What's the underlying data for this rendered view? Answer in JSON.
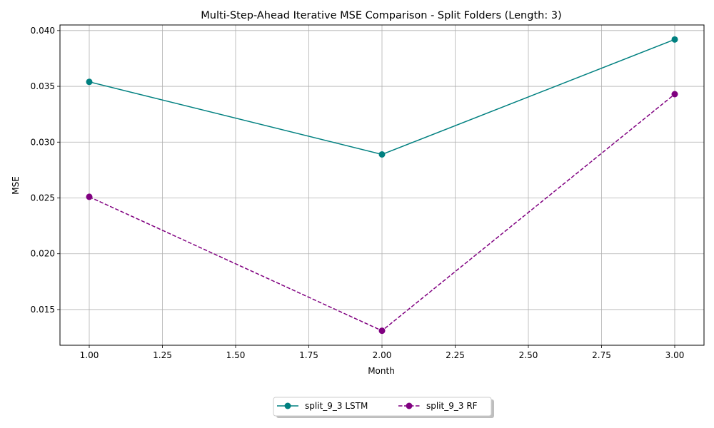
{
  "chart_data": {
    "type": "line",
    "title": "Multi-Step-Ahead Iterative MSE Comparison - Split Folders (Length: 3)",
    "xlabel": "Month",
    "ylabel": "MSE",
    "xlim": [
      0.9,
      3.1
    ],
    "ylim": [
      0.0118,
      0.0405
    ],
    "xticks": [
      1.0,
      1.25,
      1.5,
      1.75,
      2.0,
      2.25,
      2.5,
      2.75,
      3.0
    ],
    "xtick_labels": [
      "1.00",
      "1.25",
      "1.50",
      "1.75",
      "2.00",
      "2.25",
      "2.50",
      "2.75",
      "3.00"
    ],
    "yticks": [
      0.015,
      0.02,
      0.025,
      0.03,
      0.035,
      0.04
    ],
    "ytick_labels": [
      "0.015",
      "0.020",
      "0.025",
      "0.030",
      "0.035",
      "0.040"
    ],
    "grid": true,
    "legend_position": "bottom-center-outside",
    "x": [
      1,
      2,
      3
    ],
    "series": [
      {
        "name": "split_9_3 LSTM",
        "values": [
          0.0354,
          0.0289,
          0.0392
        ],
        "color": "#008080",
        "linestyle": "solid",
        "marker": "circle"
      },
      {
        "name": "split_9_3 RF",
        "values": [
          0.0251,
          0.0131,
          0.0343
        ],
        "color": "#800080",
        "linestyle": "dashed",
        "marker": "circle"
      }
    ]
  }
}
